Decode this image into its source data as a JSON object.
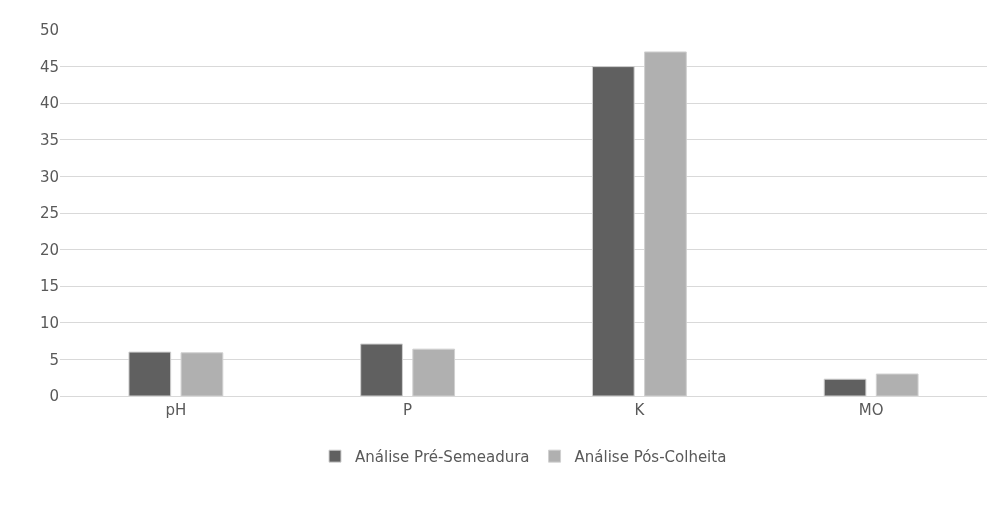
{
  "chart_data": {
    "type": "bar",
    "categories": [
      "pH",
      "P",
      "K",
      "MO"
    ],
    "series": [
      {
        "name": "Análise Pré-Semeadura",
        "color": "#606060",
        "values": [
          6.0,
          7.1,
          45,
          2.3
        ]
      },
      {
        "name": "Análise Pós-Colheita",
        "color": "#b0b0b0",
        "values": [
          5.9,
          6.4,
          47,
          3.0
        ]
      }
    ],
    "ylim": [
      0,
      50
    ],
    "yticks": [
      0,
      5,
      10,
      15,
      20,
      25,
      30,
      35,
      40,
      45,
      50
    ],
    "grid": "y",
    "legend": "bottom"
  }
}
